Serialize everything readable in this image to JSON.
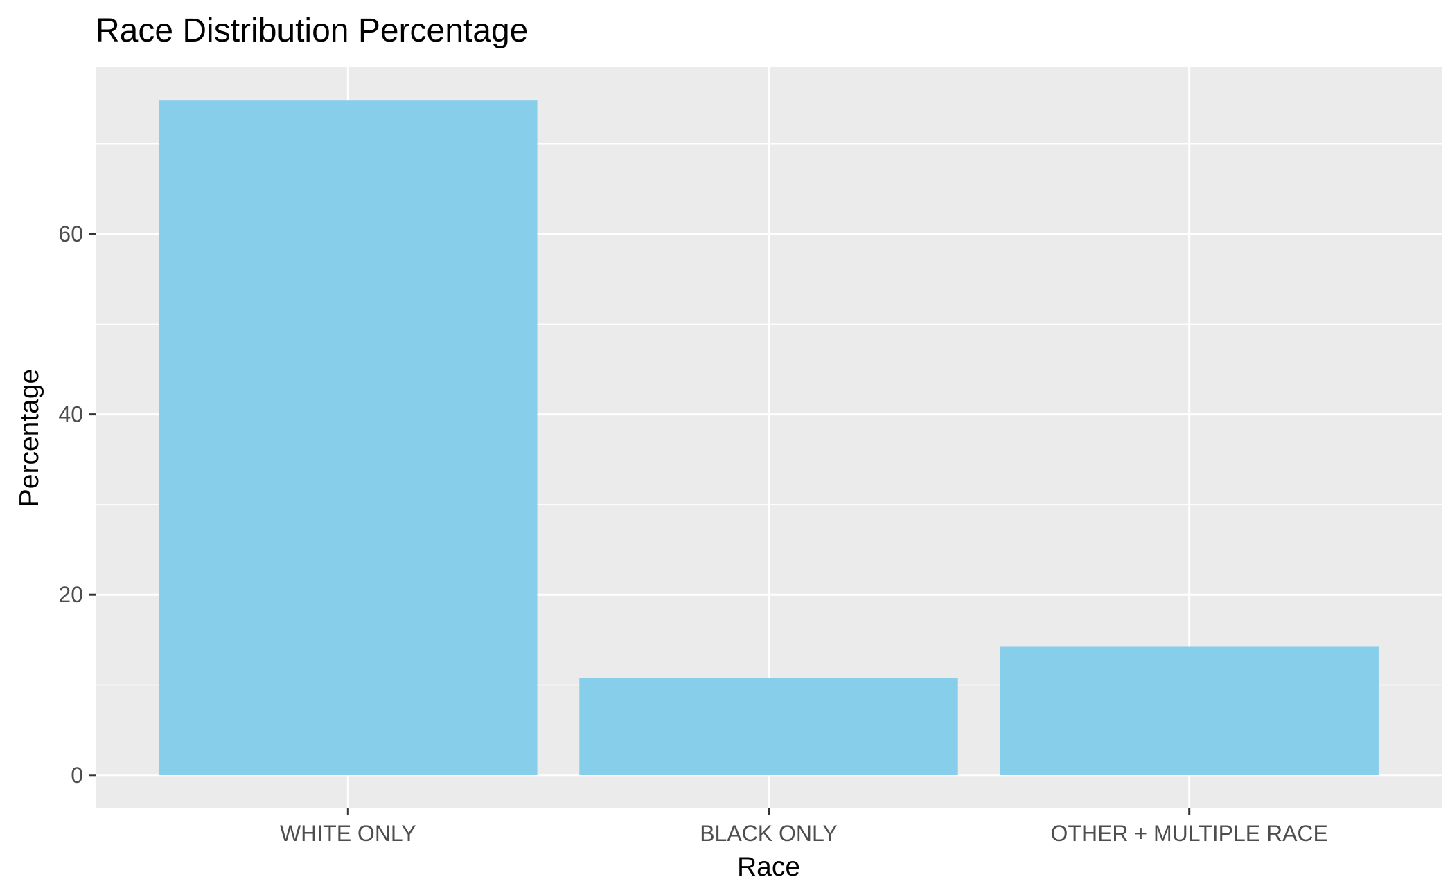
{
  "chart_data": {
    "type": "bar",
    "title": "Race Distribution Percentage",
    "xlabel": "Race",
    "ylabel": "Percentage",
    "categories": [
      "WHITE ONLY",
      "BLACK ONLY",
      "OTHER + MULTIPLE RACE"
    ],
    "values": [
      74.8,
      10.8,
      14.3
    ],
    "yticks": [
      0,
      20,
      40,
      60
    ],
    "ylim": [
      -3.7,
      78.5
    ],
    "grid": true,
    "bar_color": "#87CEEB",
    "panel_background": "#EBEBEB",
    "grid_color": "#FFFFFF"
  }
}
